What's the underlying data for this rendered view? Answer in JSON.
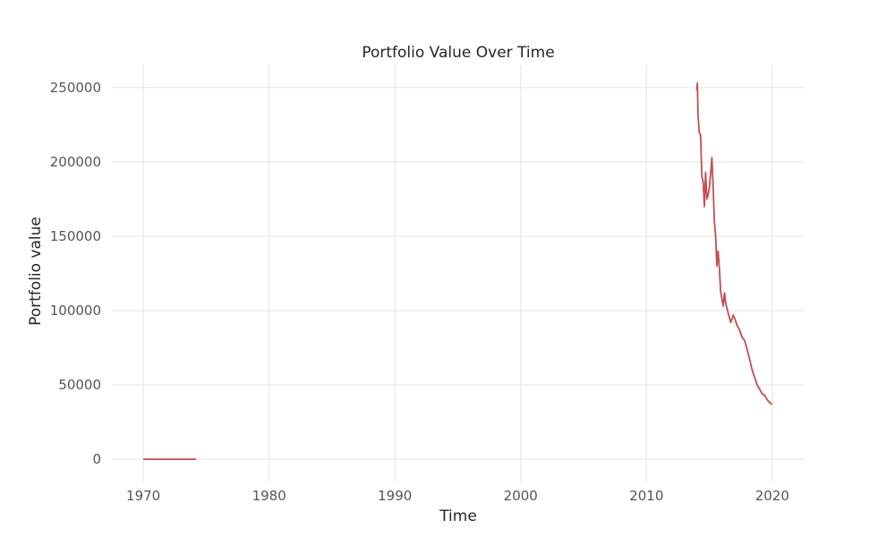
{
  "chart_data": {
    "type": "line",
    "title": "Portfolio Value Over Time",
    "xlabel": "Time",
    "ylabel": "Portfolio value",
    "xlim": [
      1967.5,
      2022.5
    ],
    "ylim": [
      -15000,
      265000
    ],
    "x_ticks": [
      1970,
      1980,
      1990,
      2000,
      2010,
      2020
    ],
    "x_tick_labels": [
      "1970",
      "1980",
      "1990",
      "2000",
      "2010",
      "2020"
    ],
    "y_ticks": [
      0,
      50000,
      100000,
      150000,
      200000,
      250000
    ],
    "y_tick_labels": [
      "0",
      "50000",
      "100000",
      "150000",
      "200000",
      "250000"
    ],
    "grid": true,
    "series": [
      {
        "color": "#c44e52",
        "segments": [
          {
            "x": [
              1970.0,
              1974.2
            ],
            "y": [
              0,
              0
            ]
          },
          {
            "x": [
              2014.0,
              2014.05,
              2014.1,
              2014.2,
              2014.3,
              2014.4,
              2014.5,
              2014.6,
              2014.7,
              2014.8,
              2014.9,
              2015.0,
              2015.1,
              2015.2,
              2015.3,
              2015.4,
              2015.5,
              2015.6,
              2015.7,
              2015.8,
              2015.9,
              2016.0,
              2016.1,
              2016.2,
              2016.3,
              2016.5,
              2016.7,
              2016.9,
              2017.0,
              2017.2,
              2017.4,
              2017.6,
              2017.8,
              2018.0,
              2018.2,
              2018.4,
              2018.6,
              2018.8,
              2019.0,
              2019.2,
              2019.4,
              2019.6,
              2019.8,
              2020.0
            ],
            "y": [
              248000,
              253000,
              232000,
              220000,
              218000,
              190000,
              187000,
              170000,
              193000,
              175000,
              178000,
              183000,
              192000,
              203000,
              184000,
              160000,
              150000,
              130000,
              140000,
              128000,
              113000,
              108000,
              103000,
              112000,
              105000,
              98000,
              92000,
              97000,
              95000,
              90000,
              87000,
              82000,
              80000,
              74000,
              67000,
              60000,
              55000,
              50000,
              47000,
              44000,
              43000,
              40000,
              38000,
              37000
            ]
          }
        ]
      }
    ]
  }
}
